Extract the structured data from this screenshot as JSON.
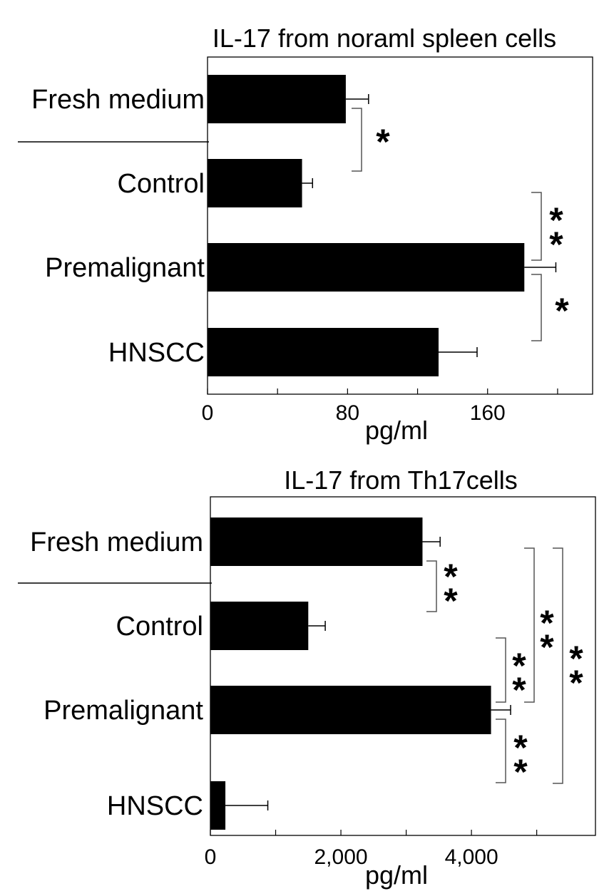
{
  "chart_data": [
    {
      "type": "bar",
      "orientation": "horizontal",
      "title": "IL-17 from noraml spleen cells",
      "xlabel": "pg/ml",
      "ylabel": "",
      "categories": [
        "Fresh medium",
        "Control",
        "Premalignant",
        "HNSCC"
      ],
      "values": [
        79,
        54,
        181,
        132
      ],
      "errors": [
        13,
        6,
        18,
        22
      ],
      "xlim": [
        0,
        220
      ],
      "xticks": [
        0,
        40,
        80,
        120,
        160,
        200
      ],
      "xtick_labels": [
        "0",
        "",
        "80",
        "",
        "160",
        ""
      ],
      "significance": [
        {
          "between": [
            "Fresh medium",
            "Control"
          ],
          "label": "*"
        },
        {
          "between": [
            "Control",
            "Premalignant"
          ],
          "label": "**"
        },
        {
          "between": [
            "Premalignant",
            "HNSCC"
          ],
          "label": "*"
        }
      ]
    },
    {
      "type": "bar",
      "orientation": "horizontal",
      "title": "IL-17 from Th17cells",
      "xlabel": "pg/ml",
      "ylabel": "",
      "categories": [
        "Fresh medium",
        "Control",
        "Premalignant",
        "HNSCC"
      ],
      "values": [
        3250,
        1500,
        4300,
        230
      ],
      "errors": [
        270,
        260,
        300,
        650
      ],
      "xlim": [
        0,
        5900
      ],
      "xticks": [
        0,
        1000,
        2000,
        3000,
        4000,
        5000
      ],
      "xtick_labels": [
        "0",
        "",
        "2,000",
        "",
        "4,000",
        ""
      ],
      "significance": [
        {
          "between": [
            "Fresh medium",
            "Control"
          ],
          "label": "**"
        },
        {
          "between": [
            "Control",
            "Premalignant"
          ],
          "label": "**"
        },
        {
          "between": [
            "Premalignant",
            "HNSCC"
          ],
          "label": "**"
        },
        {
          "between": [
            "Fresh medium",
            "Premalignant"
          ],
          "label": "**"
        },
        {
          "between": [
            "Fresh medium",
            "HNSCC"
          ],
          "label": "**"
        }
      ]
    }
  ]
}
